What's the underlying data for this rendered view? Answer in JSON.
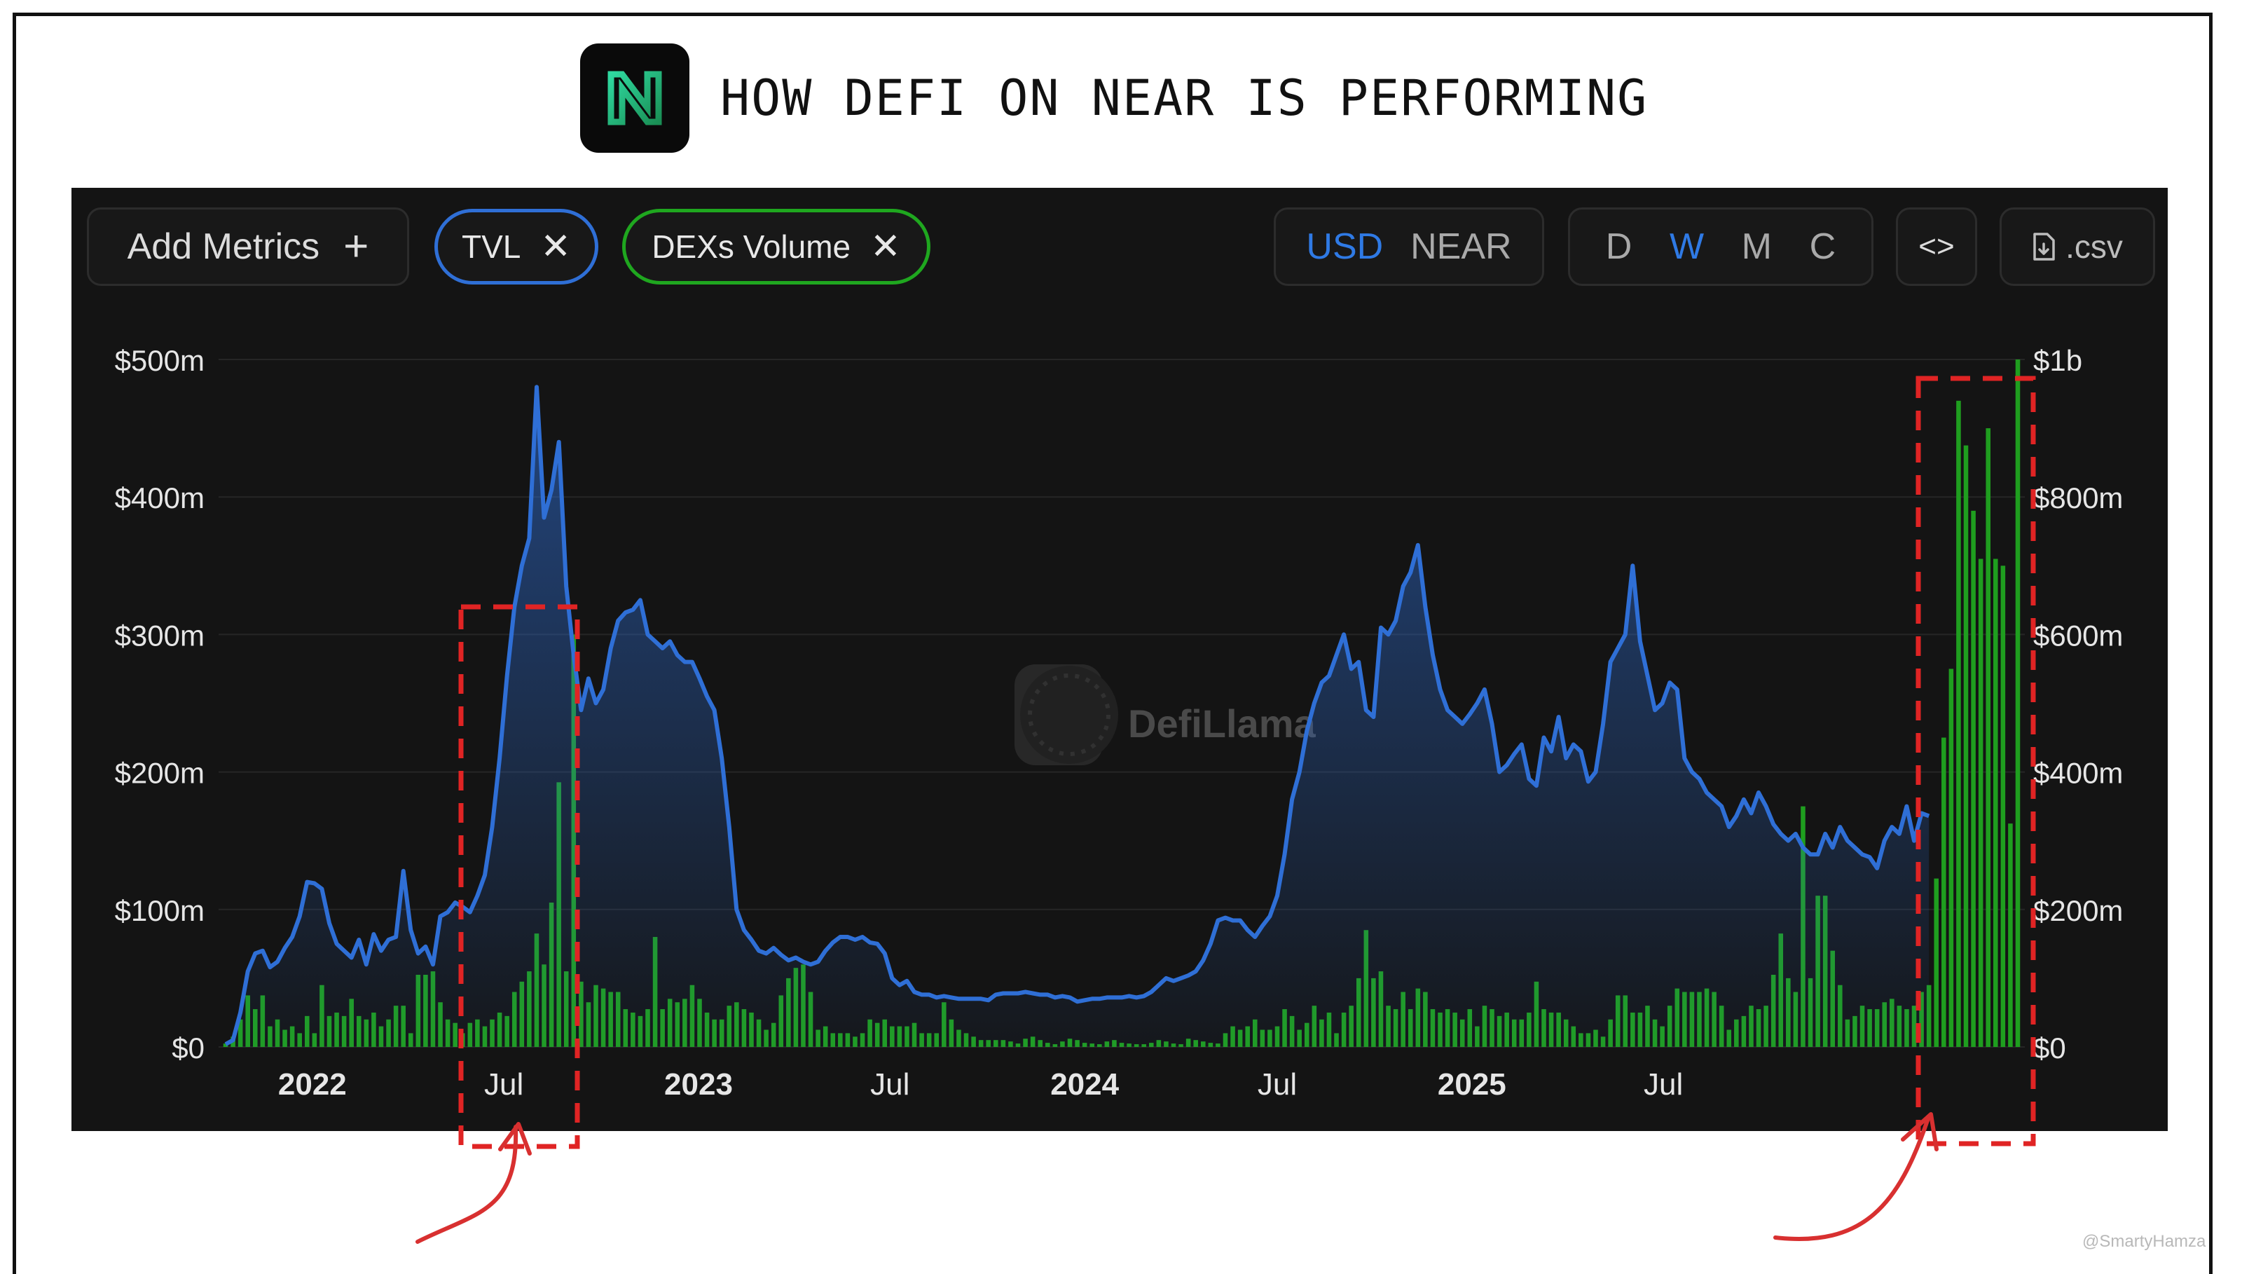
{
  "page": {
    "title": "HOW DEFI ON NEAR IS PERFORMING",
    "credit": "@SmartyHamza"
  },
  "toolbar": {
    "add_metrics_label": "Add Metrics",
    "chips": [
      {
        "label": "TVL",
        "color": "#2f6fd6"
      },
      {
        "label": "DEXs Volume",
        "color": "#1fa71f"
      }
    ],
    "currency_options": [
      "USD",
      "NEAR"
    ],
    "currency_selected": "USD",
    "granularity_options": [
      "D",
      "W",
      "M",
      "C"
    ],
    "granularity_selected": "W",
    "embed_label": "<>",
    "csv_label": ".csv"
  },
  "watermark": "DefiLlama",
  "colors": {
    "tvl_line": "#2f6fd6",
    "volume_bar": "#1f9e1f",
    "annotation": "#e02424",
    "background": "#141414"
  },
  "chart_data": {
    "type": "line",
    "x_start": "2021-10-11",
    "x_step_days": 7,
    "x_ticks": [
      "2022",
      "Jul",
      "2023",
      "Jul",
      "2024",
      "Jul",
      "2025",
      "Jul"
    ],
    "y_left": {
      "label": "",
      "range": [
        0,
        500
      ],
      "unit": "$m",
      "ticks": [
        "$0",
        "$100m",
        "$200m",
        "$300m",
        "$400m",
        "$500m"
      ]
    },
    "y_right": {
      "label": "",
      "range": [
        0,
        1000
      ],
      "unit": "$m",
      "ticks": [
        "$0",
        "$200m",
        "$400m",
        "$600m",
        "$800m",
        "$1b"
      ]
    },
    "grid": true,
    "legend": "top-left",
    "series": [
      {
        "name": "TVL",
        "axis": "left",
        "type": "area",
        "values": [
          2,
          5,
          25,
          55,
          68,
          70,
          58,
          62,
          72,
          80,
          95,
          120,
          119,
          115,
          90,
          75,
          70,
          65,
          78,
          60,
          82,
          70,
          78,
          80,
          128,
          85,
          68,
          73,
          60,
          95,
          98,
          105,
          102,
          98,
          110,
          125,
          160,
          210,
          270,
          320,
          350,
          370,
          480,
          385,
          405,
          440,
          335,
          285,
          245,
          268,
          250,
          260,
          290,
          310,
          316,
          318,
          325,
          300,
          295,
          290,
          295,
          285,
          280,
          280,
          268,
          255,
          245,
          210,
          160,
          100,
          85,
          78,
          70,
          68,
          72,
          67,
          63,
          65,
          62,
          60,
          62,
          70,
          76,
          80,
          80,
          78,
          80,
          76,
          75,
          68,
          50,
          45,
          48,
          40,
          38,
          38,
          36,
          37,
          36,
          35,
          35,
          35,
          35,
          34,
          38,
          39,
          39,
          39,
          40,
          39,
          38,
          38,
          36,
          37,
          36,
          33,
          34,
          35,
          35,
          36,
          36,
          36,
          37,
          36,
          37,
          40,
          45,
          50,
          48,
          50,
          52,
          55,
          63,
          75,
          92,
          94,
          92,
          92,
          85,
          80,
          88,
          95,
          110,
          140,
          180,
          200,
          230,
          250,
          265,
          270,
          285,
          300,
          275,
          280,
          245,
          240,
          305,
          300,
          310,
          335,
          345,
          365,
          320,
          285,
          260,
          245,
          240,
          235,
          242,
          250,
          260,
          235,
          200,
          205,
          213,
          220,
          195,
          190,
          225,
          215,
          240,
          210,
          220,
          215,
          193,
          200,
          235,
          280,
          290,
          300,
          350,
          295,
          270,
          245,
          250,
          265,
          260,
          210,
          200,
          195,
          185,
          180,
          175,
          160,
          168,
          180,
          170,
          185,
          175,
          162,
          155,
          150,
          155,
          145,
          140,
          140,
          155,
          145,
          160,
          150,
          145,
          140,
          138,
          130,
          150,
          160,
          155,
          175,
          150,
          170,
          168
        ]
      },
      {
        "name": "DEXs Volume",
        "axis": "right",
        "type": "bar",
        "values": [
          5,
          15,
          40,
          75,
          55,
          75,
          30,
          40,
          25,
          30,
          20,
          45,
          20,
          90,
          45,
          50,
          45,
          70,
          45,
          40,
          50,
          30,
          40,
          60,
          60,
          20,
          105,
          105,
          110,
          65,
          40,
          35,
          20,
          35,
          40,
          30,
          40,
          50,
          45,
          80,
          95,
          110,
          165,
          120,
          210,
          385,
          110,
          600,
          95,
          65,
          90,
          85,
          80,
          80,
          55,
          50,
          45,
          55,
          160,
          55,
          70,
          65,
          70,
          90,
          70,
          50,
          40,
          40,
          60,
          65,
          55,
          50,
          40,
          25,
          35,
          75,
          100,
          115,
          120,
          80,
          25,
          30,
          20,
          20,
          20,
          15,
          20,
          40,
          35,
          40,
          30,
          30,
          30,
          35,
          20,
          20,
          20,
          65,
          40,
          25,
          20,
          15,
          10,
          10,
          10,
          10,
          8,
          5,
          12,
          15,
          10,
          6,
          4,
          8,
          12,
          10,
          6,
          5,
          4,
          8,
          10,
          6,
          5,
          4,
          4,
          6,
          10,
          8,
          5,
          4,
          12,
          10,
          8,
          6,
          5,
          20,
          30,
          25,
          30,
          40,
          25,
          25,
          30,
          55,
          45,
          25,
          35,
          60,
          40,
          50,
          20,
          50,
          60,
          100,
          170,
          100,
          110,
          60,
          55,
          80,
          55,
          85,
          80,
          55,
          50,
          55,
          50,
          40,
          55,
          30,
          60,
          55,
          45,
          50,
          40,
          40,
          50,
          95,
          55,
          50,
          50,
          40,
          30,
          20,
          20,
          25,
          15,
          40,
          75,
          75,
          50,
          50,
          60,
          40,
          30,
          60,
          85,
          80,
          80,
          80,
          85,
          80,
          60,
          25,
          40,
          45,
          60,
          55,
          60,
          105,
          165,
          100,
          80,
          350,
          100,
          220,
          220,
          140,
          90,
          40,
          45,
          60,
          55,
          55,
          65,
          70,
          60,
          55,
          60,
          80,
          90,
          245,
          450,
          550,
          940,
          875,
          780,
          710,
          900,
          710,
          700,
          325,
          1000
        ]
      }
    ]
  }
}
